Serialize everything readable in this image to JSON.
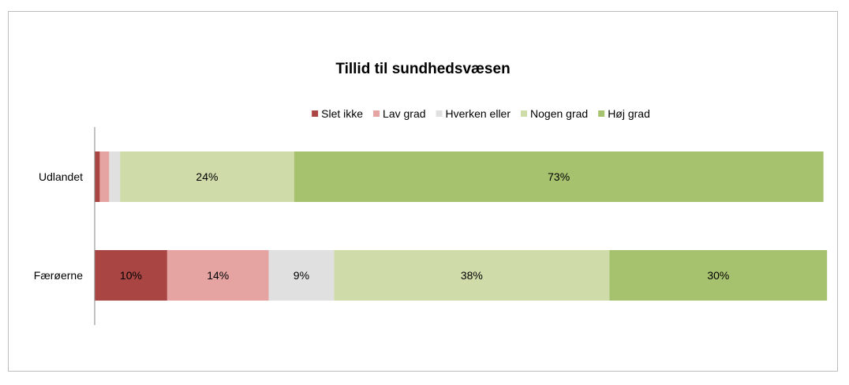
{
  "chart_data": {
    "type": "bar",
    "orientation": "horizontal",
    "stacked": "percent",
    "title": "Tillid til sundhedsvæsen",
    "xlabel": "",
    "ylabel": "",
    "categories": [
      "Udlandet",
      "Færøerne"
    ],
    "legend": {
      "position": "top"
    },
    "grid": false,
    "xlim": [
      0,
      100
    ],
    "series": [
      {
        "name": "Slet ikke",
        "color": "#a94644",
        "values": [
          0.7,
          10
        ],
        "labels": [
          "",
          "10%"
        ]
      },
      {
        "name": "Lav grad",
        "color": "#e5a3a2",
        "values": [
          1.3,
          14
        ],
        "labels": [
          "",
          "14%"
        ]
      },
      {
        "name": "Hverken eller",
        "color": "#e0e0e0",
        "values": [
          1.5,
          9
        ],
        "labels": [
          "",
          "9%"
        ]
      },
      {
        "name": "Nogen grad",
        "color": "#cfdcaa",
        "values": [
          24,
          38
        ],
        "labels": [
          "24%",
          "38%"
        ]
      },
      {
        "name": "Høj grad",
        "color": "#a7c26f",
        "values": [
          73,
          30
        ],
        "labels": [
          "73%",
          "30%"
        ]
      }
    ]
  }
}
